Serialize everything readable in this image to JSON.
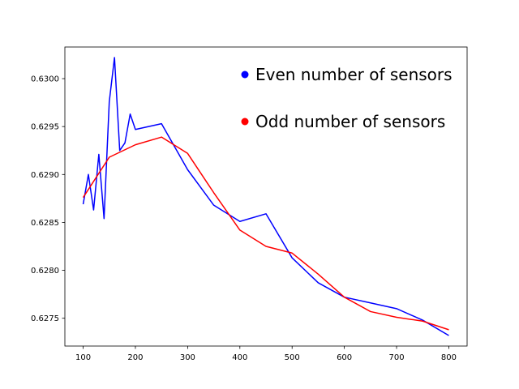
{
  "chart_data": {
    "type": "line",
    "title": "",
    "xlabel": "",
    "ylabel": "",
    "xlim": [
      65,
      835
    ],
    "ylim": [
      0.62721,
      0.63033
    ],
    "grid": false,
    "legend": {
      "placement": "top-right",
      "frame": false
    },
    "x_ticks": [
      100,
      200,
      300,
      400,
      500,
      600,
      700,
      800
    ],
    "x_tick_labels": [
      "100",
      "200",
      "300",
      "400",
      "500",
      "600",
      "700",
      "800"
    ],
    "y_ticks": [
      0.6275,
      0.628,
      0.6285,
      0.629,
      0.6295,
      0.63
    ],
    "y_tick_labels": [
      "0.6275",
      "0.6280",
      "0.6285",
      "0.6290",
      "0.6295",
      "0.6300"
    ],
    "series": [
      {
        "name": "Even number of sensors",
        "color": "#0000ff",
        "x": [
          100,
          110,
          120,
          130,
          140,
          150,
          160,
          170,
          180,
          190,
          200,
          250,
          300,
          350,
          400,
          450,
          500,
          550,
          600,
          650,
          700,
          750,
          800
        ],
        "y": [
          0.62869,
          0.629,
          0.62863,
          0.62921,
          0.62854,
          0.62976,
          0.63022,
          0.62925,
          0.62933,
          0.62963,
          0.62947,
          0.62953,
          0.62905,
          0.62868,
          0.62851,
          0.62859,
          0.62813,
          0.62787,
          0.62772,
          0.62766,
          0.6276,
          0.62748,
          0.62732
        ]
      },
      {
        "name": "Odd number of sensors",
        "color": "#ff0000",
        "x": [
          100,
          150,
          200,
          250,
          300,
          350,
          400,
          450,
          500,
          550,
          600,
          650,
          700,
          750,
          800
        ],
        "y": [
          0.62876,
          0.62918,
          0.62931,
          0.62939,
          0.62922,
          0.62881,
          0.62842,
          0.62825,
          0.62818,
          0.62796,
          0.62772,
          0.62757,
          0.62751,
          0.62747,
          0.62738
        ]
      }
    ]
  }
}
